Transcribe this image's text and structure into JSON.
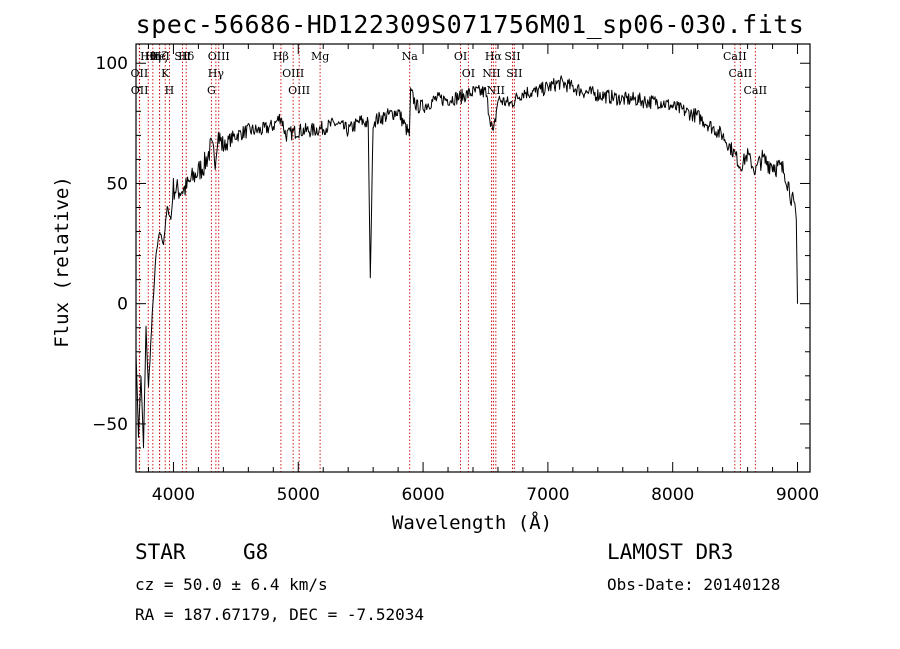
{
  "title": "spec-56686-HD122309S071756M01_sp06-030.fits",
  "info": {
    "class_label": "STAR",
    "subclass": "G8",
    "survey": "LAMOST DR3",
    "redshift": "cz = 50.0 ± 6.4 km/s",
    "obs_date": "Obs-Date: 20140128",
    "coords": "RA = 187.67179, DEC =  -7.52034"
  },
  "chart_data": {
    "type": "line",
    "title": "spec-56686-HD122309S071756M01_sp06-030.fits",
    "xlabel": "Wavelength (Å)",
    "ylabel": "Flux (relative)",
    "xlim": [
      3700,
      9100
    ],
    "ylim": [
      -70,
      108
    ],
    "xticks": [
      4000,
      5000,
      6000,
      7000,
      8000,
      9000
    ],
    "yticks": [
      -50,
      0,
      50,
      100
    ],
    "grid": false,
    "line_color": "#000000",
    "marker_color": "#cc0000",
    "series": [
      {
        "x": [
          3700,
          3720,
          3740,
          3760,
          3780,
          3800,
          3830,
          3860,
          3890,
          3920,
          3950,
          3980,
          4000,
          4050,
          4100,
          4150,
          4200,
          4250,
          4300,
          4340,
          4360,
          4400,
          4450,
          4500,
          4600,
          4700,
          4800,
          4861,
          4900,
          5000,
          5100,
          5200,
          5300,
          5400,
          5500,
          5560,
          5577,
          5600,
          5700,
          5800,
          5890,
          5900,
          5950,
          6000,
          6100,
          6200,
          6300,
          6400,
          6500,
          6563,
          6600,
          6700,
          6800,
          6900,
          7000,
          7100,
          7200,
          7300,
          7400,
          7500,
          7600,
          7700,
          7800,
          7900,
          8000,
          8100,
          8200,
          8300,
          8400,
          8500,
          8542,
          8600,
          8662,
          8700,
          8800,
          8900,
          8950,
          8990,
          9000
        ],
        "y": [
          -20,
          -55,
          -30,
          -60,
          -10,
          -35,
          -5,
          20,
          30,
          25,
          40,
          35,
          48,
          47,
          48,
          52,
          55,
          58,
          65,
          60,
          70,
          65,
          68,
          70,
          72,
          72,
          74,
          78,
          70,
          72,
          72,
          73,
          75,
          72,
          76,
          75,
          10,
          76,
          78,
          80,
          70,
          88,
          82,
          82,
          85,
          85,
          86,
          88,
          88,
          70,
          85,
          83,
          88,
          88,
          90,
          92,
          90,
          88,
          87,
          86,
          85,
          85,
          84,
          84,
          82,
          80,
          78,
          74,
          70,
          62,
          57,
          62,
          55,
          60,
          58,
          55,
          45,
          35,
          0
        ]
      }
    ],
    "lines": [
      {
        "name": "Hθ",
        "wave": 3798
      },
      {
        "name": "OII",
        "wave": 3727
      },
      {
        "name": "OII",
        "wave": 3729
      },
      {
        "name": "Hζ",
        "wave": 3889
      },
      {
        "name": "HeI",
        "wave": 3889
      },
      {
        "name": "Hη",
        "wave": 3835
      },
      {
        "name": "K",
        "wave": 3934
      },
      {
        "name": "H",
        "wave": 3968
      },
      {
        "name": "SII",
        "wave": 4072
      },
      {
        "name": "Hδ",
        "wave": 4102
      },
      {
        "name": "OIII",
        "wave": 4363
      },
      {
        "name": "Hγ",
        "wave": 4340
      },
      {
        "name": "G",
        "wave": 4304
      },
      {
        "name": "Hβ",
        "wave": 4861
      },
      {
        "name": "OIII",
        "wave": 4959
      },
      {
        "name": "OIII",
        "wave": 5007
      },
      {
        "name": "Mg",
        "wave": 5175
      },
      {
        "name": "Na",
        "wave": 5893
      },
      {
        "name": "OI",
        "wave": 6300
      },
      {
        "name": "OI",
        "wave": 6363
      },
      {
        "name": "Hα",
        "wave": 6563
      },
      {
        "name": "NII",
        "wave": 6548
      },
      {
        "name": "NII",
        "wave": 6583
      },
      {
        "name": "SII",
        "wave": 6716
      },
      {
        "name": "SII",
        "wave": 6731
      },
      {
        "name": "CaII",
        "wave": 8498
      },
      {
        "name": "CaII",
        "wave": 8542
      },
      {
        "name": "CaII",
        "wave": 8662
      }
    ]
  }
}
